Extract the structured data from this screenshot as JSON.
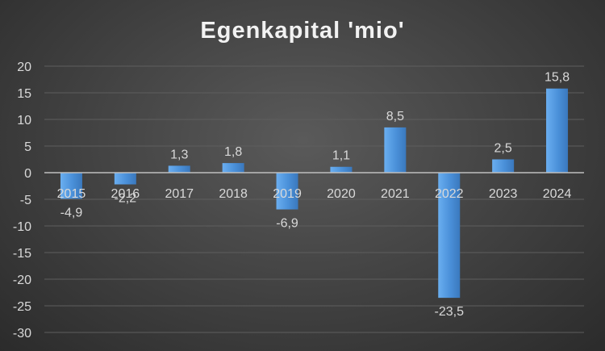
{
  "chart_data": {
    "type": "bar",
    "title": "Egenkapital 'mio'",
    "categories": [
      "2015",
      "2016",
      "2017",
      "2018",
      "2019",
      "2020",
      "2021",
      "2022",
      "2023",
      "2024"
    ],
    "values": [
      -4.9,
      -2.2,
      1.3,
      1.8,
      -6.9,
      1.1,
      8.5,
      -23.5,
      2.5,
      15.8
    ],
    "data_labels": [
      "-4,9",
      "-2,2",
      "1,3",
      "1,8",
      "-6,9",
      "1,1",
      "8,5",
      "-23,5",
      "2,5",
      "15,8"
    ],
    "yticks": [
      "20",
      "15",
      "10",
      "5",
      "0",
      "-5",
      "-10",
      "-15",
      "-20",
      "-25",
      "-30"
    ],
    "ylim": [
      -30,
      20
    ],
    "xlabel": "",
    "ylabel": "",
    "grid": true,
    "legend": "none",
    "colors": {
      "bar": "#4a90d9",
      "bar_light": "#6aaef0",
      "bar_dark": "#3a78bd"
    }
  }
}
